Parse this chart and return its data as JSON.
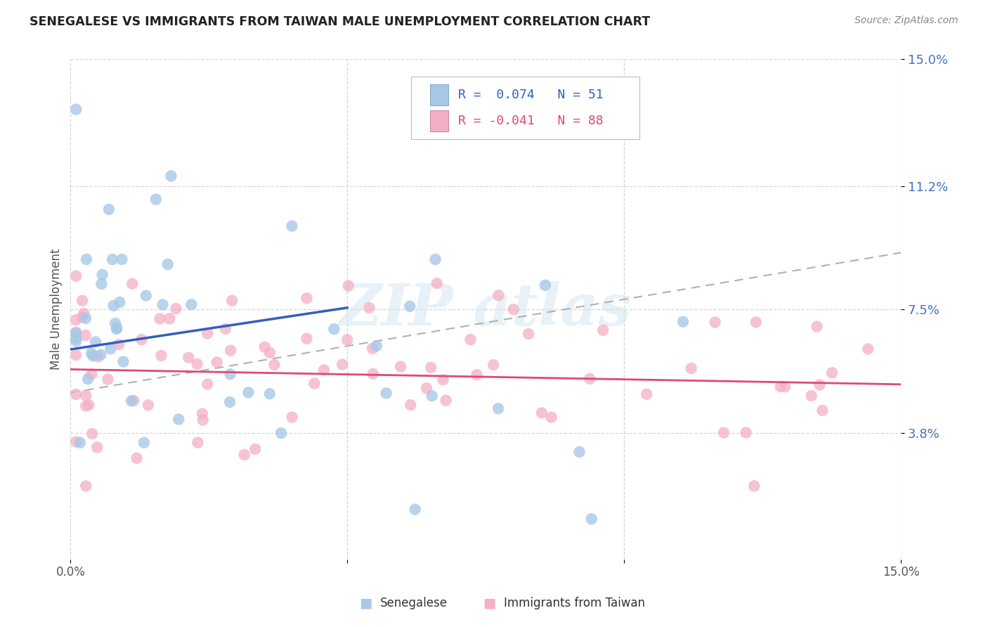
{
  "title": "SENEGALESE VS IMMIGRANTS FROM TAIWAN MALE UNEMPLOYMENT CORRELATION CHART",
  "source": "Source: ZipAtlas.com",
  "ylabel": "Male Unemployment",
  "senegalese_color": "#a8c8e8",
  "taiwan_color": "#f4afc4",
  "senegalese_line_color": "#3060c0",
  "taiwan_line_color": "#e04878",
  "dashed_line_color": "#b0b0b0",
  "grid_color": "#cccccc",
  "bg_color": "#ffffff",
  "title_color": "#222222",
  "source_color": "#888888",
  "ytick_color": "#4472c4",
  "watermark_color": "#d0e4f0",
  "legend_text_blue": "R =  0.074   N = 51",
  "legend_text_pink": "R = -0.041   N = 88",
  "legend_label_blue": "Senegalese",
  "legend_label_pink": "Immigrants from Taiwan"
}
